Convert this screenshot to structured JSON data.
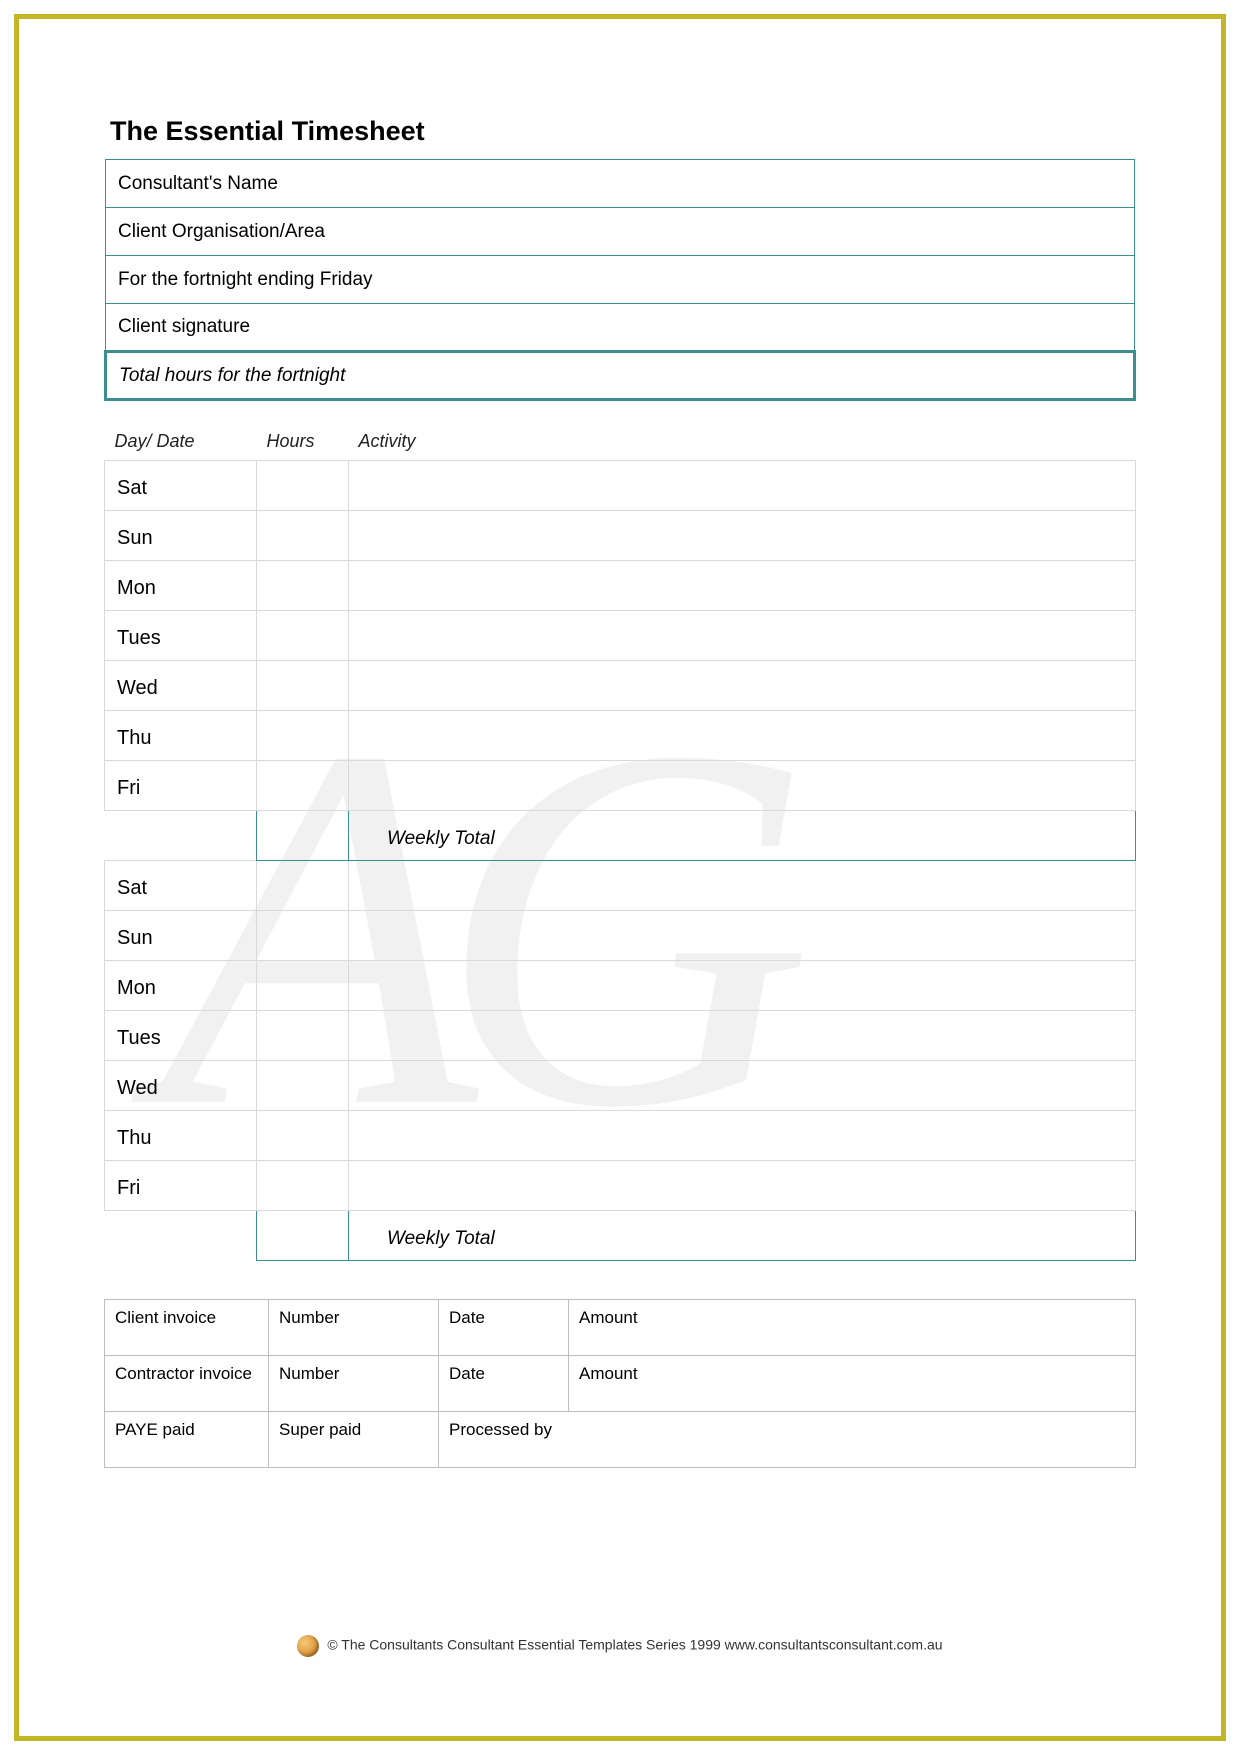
{
  "page": {
    "border_color": "#c3b727",
    "accent_border_color": "#3d8f8f",
    "grid_border_color": "#d9d9d9",
    "invoice_border_color": "#bfbfbf"
  },
  "title": "The Essential Timesheet",
  "header_rows": [
    "Consultant's Name",
    "Client Organisation/Area",
    "For the fortnight ending Friday",
    "Client signature"
  ],
  "header_total_row": "Total hours for the fortnight",
  "log": {
    "columns": [
      "Day/ Date",
      "Hours",
      "Activity"
    ],
    "week1": [
      "Sat",
      "Sun",
      "Mon",
      "Tues",
      "Wed",
      "Thu",
      "Fri"
    ],
    "week2": [
      "Sat",
      "Sun",
      "Mon",
      "Tues",
      "Wed",
      "Thu",
      "Fri"
    ],
    "weekly_total_label": "Weekly Total"
  },
  "invoice": {
    "rows": [
      [
        "Client invoice",
        "Number",
        "Date",
        "Amount"
      ],
      [
        "Contractor invoice",
        "Number",
        "Date",
        "Amount"
      ],
      [
        "PAYE paid",
        "Super paid",
        "Processed by",
        ""
      ]
    ],
    "row3_merge_last": true
  },
  "footer": "© The Consultants Consultant Essential Templates Series 1999 www.consultantsconsultant.com.au"
}
